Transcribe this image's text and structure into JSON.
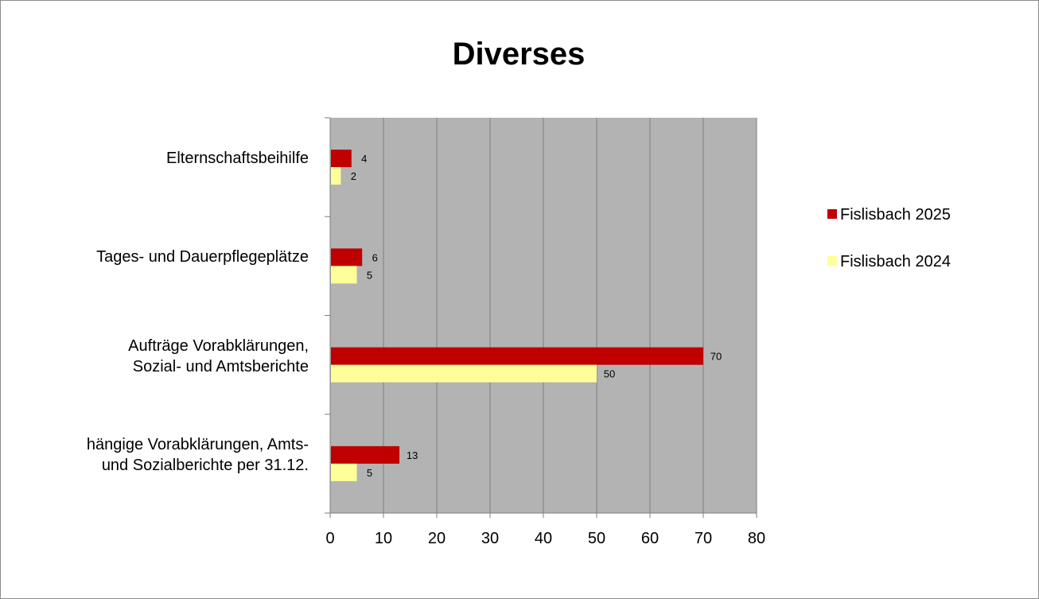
{
  "chart_data": {
    "type": "bar",
    "orientation": "horizontal",
    "title": "Diverses",
    "categories": [
      "Elternschaftsbeihilfe",
      "Tages- und Dauerpflegeplätze",
      "Aufträge Vorabklärungen,\nSozial- und Amtsberichte",
      "hängige Vorabklärungen, Amts-\nund Sozialberichte per 31.12."
    ],
    "series": [
      {
        "name": "Fislisbach 2025",
        "color": "#c00000",
        "values": [
          4,
          6,
          70,
          13
        ]
      },
      {
        "name": "Fislisbach 2024",
        "color": "#ffff99",
        "values": [
          2,
          5,
          50,
          5
        ]
      }
    ],
    "xlim": [
      0,
      80
    ],
    "xticks": [
      0,
      10,
      20,
      30,
      40,
      50,
      60,
      70,
      80
    ],
    "grid": true,
    "plot_background": "#b3b3b3",
    "legend_position": "right"
  }
}
